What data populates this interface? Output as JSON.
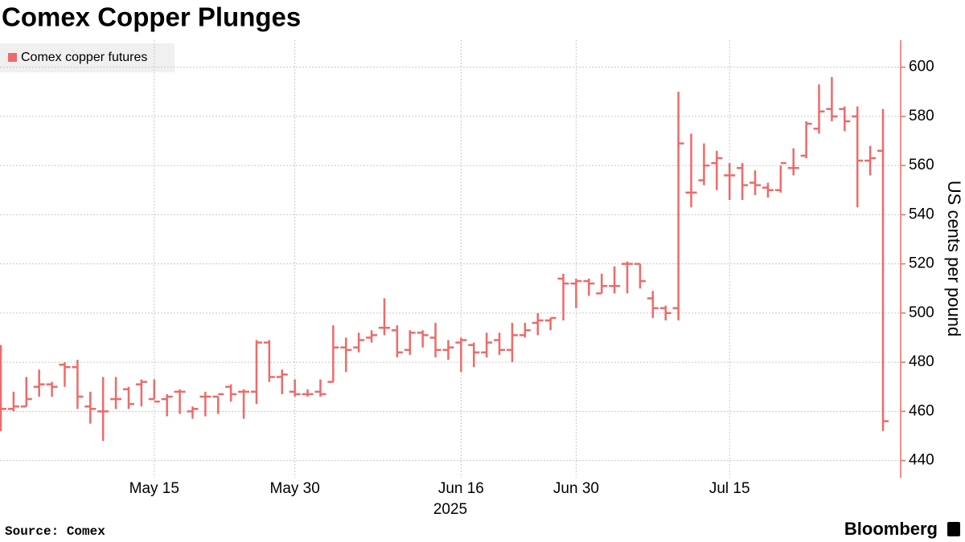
{
  "chart_data": {
    "type": "ohlc",
    "title": "Comex Copper Plunges",
    "legend": "Comex copper futures",
    "color": "#ee6a6a",
    "xlabel": "2025",
    "ylabel": "US cents per pound",
    "source": "Source: Comex",
    "brand": "Bloomberg",
    "categories": [
      null,
      null,
      null,
      null,
      null,
      null,
      null,
      null,
      null,
      null,
      null,
      null,
      "May 15",
      null,
      null,
      null,
      null,
      null,
      null,
      null,
      null,
      null,
      null,
      "May 30",
      null,
      null,
      null,
      null,
      null,
      null,
      null,
      null,
      null,
      null,
      null,
      null,
      "Jun 16",
      null,
      null,
      null,
      null,
      null,
      null,
      null,
      null,
      "Jun 30",
      null,
      null,
      null,
      null,
      null,
      null,
      null,
      null,
      null,
      null,
      null,
      "Jul 15",
      null,
      null,
      null,
      null,
      null,
      null,
      null,
      null,
      null,
      null,
      null,
      null
    ],
    "open": [
      486,
      461,
      462,
      470,
      471,
      479,
      478,
      462,
      460,
      465,
      469,
      471,
      465,
      465,
      468,
      460,
      466,
      466,
      470,
      468,
      468,
      488,
      474,
      468,
      467,
      468,
      472,
      486,
      486,
      490,
      494,
      493,
      485,
      492,
      490,
      485,
      488,
      487,
      484,
      489,
      485,
      491,
      496,
      497,
      514,
      512,
      513,
      508,
      511,
      520,
      520,
      506,
      502,
      502,
      549,
      554,
      561,
      556,
      559,
      553,
      551,
      550,
      559,
      564,
      575,
      583,
      583,
      580,
      562,
      566
    ],
    "high": [
      487,
      468,
      474,
      477,
      472,
      480,
      481,
      468,
      474,
      474,
      470,
      473,
      473,
      467,
      469,
      462,
      468,
      466,
      471,
      469,
      489,
      489,
      477,
      473,
      469,
      473,
      495,
      490,
      492,
      493,
      506,
      495,
      493,
      493,
      496,
      489,
      490,
      488,
      492,
      492,
      496,
      496,
      500,
      498,
      516,
      514,
      514,
      516,
      519,
      521,
      520,
      509,
      503,
      590,
      573,
      569,
      566,
      561,
      561,
      558,
      553,
      560,
      567,
      578,
      593,
      596,
      584,
      584,
      568,
      583
    ],
    "low": [
      452,
      460,
      462,
      466,
      466,
      470,
      461,
      455,
      448,
      461,
      461,
      462,
      465,
      458,
      459,
      457,
      458,
      459,
      464,
      457,
      463,
      472,
      467,
      466,
      466,
      466,
      472,
      476,
      484,
      488,
      491,
      482,
      483,
      486,
      482,
      481,
      476,
      478,
      482,
      483,
      480,
      490,
      491,
      493,
      497,
      502,
      507,
      508,
      508,
      508,
      510,
      498,
      497,
      497,
      543,
      552,
      550,
      546,
      546,
      548,
      547,
      549,
      556,
      563,
      573,
      578,
      574,
      543,
      556,
      452
    ],
    "close": [
      461,
      462,
      465,
      471,
      470,
      478,
      466,
      461,
      460,
      465,
      463,
      472,
      464,
      466,
      468,
      461,
      466,
      467,
      467,
      468,
      488,
      474,
      475,
      467,
      467,
      467,
      486,
      485,
      489,
      491,
      494,
      484,
      492,
      491,
      485,
      486,
      489,
      484,
      488,
      485,
      491,
      493,
      497,
      498,
      512,
      513,
      512,
      511,
      511,
      520,
      513,
      502,
      500,
      569,
      549,
      560,
      563,
      556,
      552,
      552,
      550,
      561,
      559,
      577,
      582,
      580,
      578,
      562,
      563,
      456
    ],
    "ylim": [
      433,
      611
    ],
    "yticks": [
      440,
      460,
      480,
      500,
      520,
      540,
      560,
      580,
      600
    ],
    "grid": true
  }
}
